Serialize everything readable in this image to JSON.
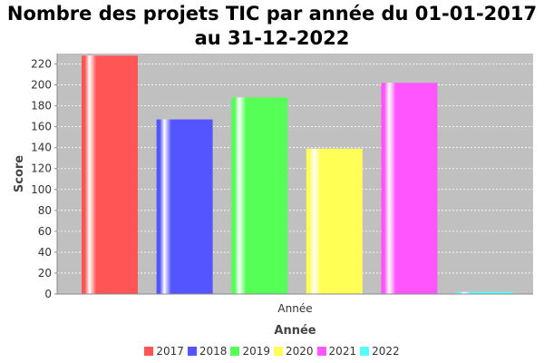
{
  "chart_data": {
    "type": "bar",
    "title": "Nombre des projets TIC par année du 01-01-2017 au 31-12-2022",
    "xlabel": "Année",
    "ylabel": "Score",
    "categories": [
      "Année"
    ],
    "series": [
      {
        "name": "2017",
        "values": [
          228
        ],
        "color": "#ff5555"
      },
      {
        "name": "2018",
        "values": [
          167
        ],
        "color": "#5555ff"
      },
      {
        "name": "2019",
        "values": [
          188
        ],
        "color": "#55ff55"
      },
      {
        "name": "2020",
        "values": [
          139
        ],
        "color": "#ffff55"
      },
      {
        "name": "2021",
        "values": [
          202
        ],
        "color": "#ff55ff"
      },
      {
        "name": "2022",
        "values": [
          2
        ],
        "color": "#55ffff"
      }
    ],
    "ylim": [
      0,
      230
    ],
    "yticks": [
      0,
      20,
      40,
      60,
      80,
      100,
      120,
      140,
      160,
      180,
      200,
      220
    ],
    "grid": true,
    "legend": "bottom",
    "plot_background": "#c0c0c0"
  }
}
